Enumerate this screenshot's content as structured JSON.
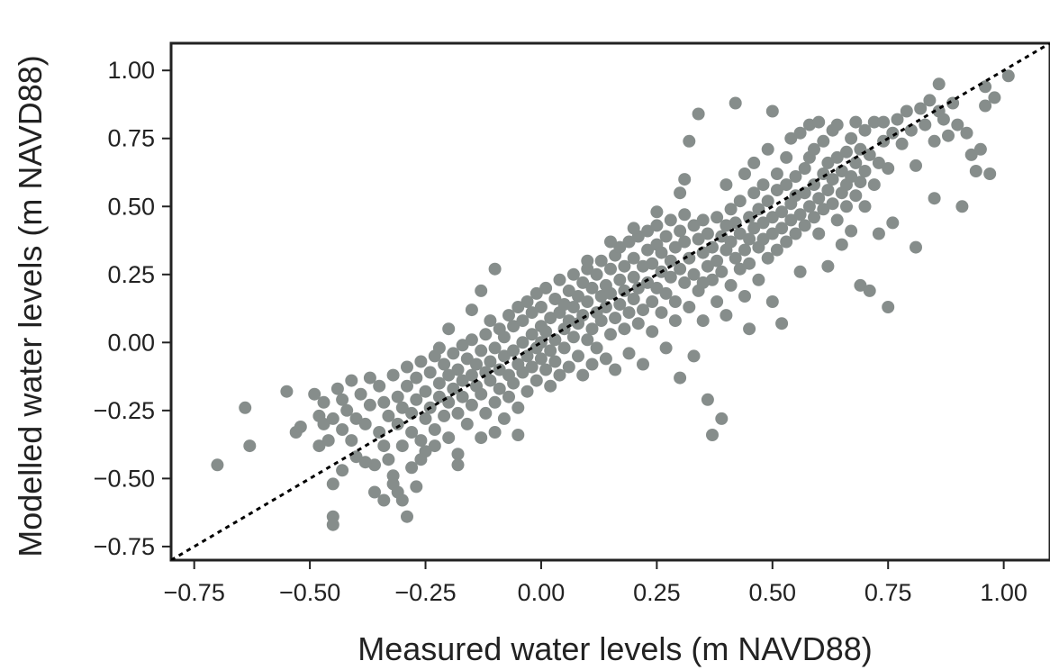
{
  "chart_data": {
    "type": "scatter",
    "title": "",
    "xlabel": "Measured water levels (m NAVD88)",
    "ylabel": "Modelled water levels (m NAVD88)",
    "xlim": [
      -0.8,
      1.1
    ],
    "ylim": [
      -0.8,
      1.1
    ],
    "x_ticks": [
      -0.75,
      -0.5,
      -0.25,
      0.0,
      0.25,
      0.5,
      0.75,
      1.0
    ],
    "x_tick_labels": [
      "−0.75",
      "−0.50",
      "−0.25",
      "0.00",
      "0.25",
      "0.50",
      "0.75",
      "1.00"
    ],
    "y_ticks": [
      -0.75,
      -0.5,
      -0.25,
      0.0,
      0.25,
      0.5,
      0.75,
      1.0
    ],
    "y_tick_labels": [
      "−0.75",
      "−0.50",
      "−0.25",
      "0.00",
      "0.25",
      "0.50",
      "0.75",
      "1.00"
    ],
    "grid": false,
    "marker_color": "#868d8b",
    "reference_line": {
      "style": "dotted",
      "color": "#000000",
      "from": [
        -0.8,
        -0.8
      ],
      "to": [
        1.1,
        1.1
      ]
    },
    "points": [
      [
        -0.7,
        -0.45
      ],
      [
        -0.64,
        -0.24
      ],
      [
        -0.63,
        -0.38
      ],
      [
        -0.55,
        -0.18
      ],
      [
        -0.53,
        -0.33
      ],
      [
        -0.52,
        -0.31
      ],
      [
        -0.49,
        -0.19
      ],
      [
        -0.48,
        -0.27
      ],
      [
        -0.48,
        -0.38
      ],
      [
        -0.47,
        -0.3
      ],
      [
        -0.47,
        -0.22
      ],
      [
        -0.46,
        -0.36
      ],
      [
        -0.45,
        -0.28
      ],
      [
        -0.45,
        -0.52
      ],
      [
        -0.45,
        -0.64
      ],
      [
        -0.45,
        -0.67
      ],
      [
        -0.44,
        -0.17
      ],
      [
        -0.43,
        -0.32
      ],
      [
        -0.43,
        -0.21
      ],
      [
        -0.42,
        -0.25
      ],
      [
        -0.41,
        -0.14
      ],
      [
        -0.41,
        -0.36
      ],
      [
        -0.4,
        -0.28
      ],
      [
        -0.4,
        -0.42
      ],
      [
        -0.39,
        -0.19
      ],
      [
        -0.38,
        -0.3
      ],
      [
        -0.37,
        -0.13
      ],
      [
        -0.37,
        -0.23
      ],
      [
        -0.36,
        -0.45
      ],
      [
        -0.36,
        -0.55
      ],
      [
        -0.35,
        -0.33
      ],
      [
        -0.35,
        -0.16
      ],
      [
        -0.34,
        -0.38
      ],
      [
        -0.34,
        -0.22
      ],
      [
        -0.33,
        -0.27
      ],
      [
        -0.33,
        -0.43
      ],
      [
        -0.32,
        -0.52
      ],
      [
        -0.32,
        -0.12
      ],
      [
        -0.31,
        -0.2
      ],
      [
        -0.31,
        -0.3
      ],
      [
        -0.31,
        -0.55
      ],
      [
        -0.3,
        -0.24
      ],
      [
        -0.3,
        -0.38
      ],
      [
        -0.3,
        -0.58
      ],
      [
        -0.29,
        -0.64
      ],
      [
        -0.29,
        -0.09
      ],
      [
        -0.29,
        -0.16
      ],
      [
        -0.28,
        -0.33
      ],
      [
        -0.28,
        -0.46
      ],
      [
        -0.28,
        -0.26
      ],
      [
        -0.27,
        -0.53
      ],
      [
        -0.27,
        -0.13
      ],
      [
        -0.27,
        -0.21
      ],
      [
        -0.26,
        -0.36
      ],
      [
        -0.26,
        -0.07
      ],
      [
        -0.25,
        -0.28
      ],
      [
        -0.25,
        -0.4
      ],
      [
        -0.25,
        -0.18
      ],
      [
        -0.24,
        -0.11
      ],
      [
        -0.24,
        -0.24
      ],
      [
        -0.23,
        -0.05
      ],
      [
        -0.23,
        -0.32
      ],
      [
        -0.23,
        -0.38
      ],
      [
        -0.22,
        -0.15
      ],
      [
        -0.22,
        -0.2
      ],
      [
        -0.22,
        -0.02
      ],
      [
        -0.21,
        -0.27
      ],
      [
        -0.21,
        -0.08
      ],
      [
        -0.2,
        -0.12
      ],
      [
        -0.2,
        -0.35
      ],
      [
        -0.2,
        -0.22
      ],
      [
        -0.19,
        -0.04
      ],
      [
        -0.19,
        -0.17
      ],
      [
        -0.18,
        -0.1
      ],
      [
        -0.18,
        -0.26
      ],
      [
        -0.18,
        -0.41
      ],
      [
        -0.17,
        -0.01
      ],
      [
        -0.17,
        -0.14
      ],
      [
        -0.17,
        -0.2
      ],
      [
        -0.16,
        -0.06
      ],
      [
        -0.16,
        -0.3
      ],
      [
        -0.15,
        -0.12
      ],
      [
        -0.15,
        0.01
      ],
      [
        -0.15,
        -0.23
      ],
      [
        -0.14,
        -0.08
      ],
      [
        -0.14,
        -0.16
      ],
      [
        -0.13,
        -0.35
      ],
      [
        -0.13,
        -0.03
      ],
      [
        -0.13,
        -0.19
      ],
      [
        -0.12,
        -0.11
      ],
      [
        -0.12,
        0.03
      ],
      [
        -0.12,
        -0.26
      ],
      [
        -0.11,
        -0.07
      ],
      [
        -0.11,
        -0.14
      ],
      [
        -0.11,
        0.08
      ],
      [
        -0.1,
        -0.02
      ],
      [
        -0.1,
        -0.22
      ],
      [
        -0.1,
        -0.33
      ],
      [
        -0.09,
        -0.1
      ],
      [
        -0.09,
        0.05
      ],
      [
        -0.09,
        -0.17
      ],
      [
        -0.08,
        -0.05
      ],
      [
        -0.08,
        0.02
      ],
      [
        -0.08,
        -0.28
      ],
      [
        -0.07,
        -0.12
      ],
      [
        -0.07,
        0.1
      ],
      [
        -0.07,
        -0.2
      ],
      [
        -0.06,
        -0.03
      ],
      [
        -0.06,
        0.06
      ],
      [
        -0.06,
        -0.15
      ],
      [
        -0.05,
        -0.08
      ],
      [
        -0.05,
        0.13
      ],
      [
        -0.05,
        -0.24
      ],
      [
        -0.05,
        -0.34
      ],
      [
        -0.04,
        0.0
      ],
      [
        -0.04,
        -0.11
      ],
      [
        -0.04,
        0.08
      ],
      [
        -0.03,
        -0.05
      ],
      [
        -0.03,
        0.15
      ],
      [
        -0.03,
        -0.18
      ],
      [
        -0.02,
        0.03
      ],
      [
        -0.02,
        -0.09
      ],
      [
        -0.02,
        0.11
      ],
      [
        -0.01,
        -0.02
      ],
      [
        -0.01,
        0.18
      ],
      [
        -0.01,
        -0.14
      ],
      [
        0.0,
        0.06
      ],
      [
        0.0,
        -0.06
      ],
      [
        0.0,
        0.0
      ],
      [
        0.0,
        0.13
      ],
      [
        0.01,
        -0.1
      ],
      [
        0.01,
        0.2
      ],
      [
        0.01,
        0.04
      ],
      [
        0.02,
        -0.03
      ],
      [
        0.02,
        0.09
      ],
      [
        0.02,
        -0.16
      ],
      [
        0.03,
        0.16
      ],
      [
        0.03,
        0.01
      ],
      [
        0.03,
        -0.07
      ],
      [
        0.04,
        0.11
      ],
      [
        0.04,
        0.23
      ],
      [
        0.04,
        -0.12
      ],
      [
        0.05,
        0.05
      ],
      [
        0.05,
        0.14
      ],
      [
        0.05,
        -0.02
      ],
      [
        0.06,
        0.19
      ],
      [
        0.06,
        0.08
      ],
      [
        0.06,
        -0.09
      ],
      [
        0.07,
        0.02
      ],
      [
        0.07,
        0.25
      ],
      [
        0.07,
        0.13
      ],
      [
        0.08,
        -0.05
      ],
      [
        0.08,
        0.17
      ],
      [
        0.08,
        0.07
      ],
      [
        0.09,
        0.22
      ],
      [
        0.09,
        -0.12
      ],
      [
        0.09,
        0.1
      ],
      [
        0.1,
        0.01
      ],
      [
        0.1,
        0.27
      ],
      [
        0.1,
        0.15
      ],
      [
        0.11,
        -0.08
      ],
      [
        0.11,
        0.2
      ],
      [
        0.11,
        0.05
      ],
      [
        0.12,
        0.11
      ],
      [
        0.12,
        0.25
      ],
      [
        0.12,
        -0.02
      ],
      [
        0.13,
        0.17
      ],
      [
        0.13,
        0.3
      ],
      [
        0.13,
        0.08
      ],
      [
        0.14,
        0.21
      ],
      [
        0.14,
        -0.06
      ],
      [
        0.14,
        0.13
      ],
      [
        0.15,
        0.27
      ],
      [
        0.15,
        0.03
      ],
      [
        0.15,
        0.18
      ],
      [
        0.16,
        0.32
      ],
      [
        0.16,
        0.09
      ],
      [
        0.16,
        -0.1
      ],
      [
        0.17,
        0.23
      ],
      [
        0.17,
        0.14
      ],
      [
        0.17,
        0.35
      ],
      [
        0.18,
        0.05
      ],
      [
        0.18,
        0.28
      ],
      [
        0.18,
        0.19
      ],
      [
        0.19,
        0.11
      ],
      [
        0.19,
        0.37
      ],
      [
        0.19,
        -0.04
      ],
      [
        0.2,
        0.24
      ],
      [
        0.2,
        0.16
      ],
      [
        0.2,
        0.31
      ],
      [
        0.21,
        0.07
      ],
      [
        0.21,
        0.39
      ],
      [
        0.21,
        0.2
      ],
      [
        0.22,
        0.28
      ],
      [
        0.22,
        0.12
      ],
      [
        0.22,
        -0.08
      ],
      [
        0.23,
        0.34
      ],
      [
        0.23,
        0.22
      ],
      [
        0.23,
        0.41
      ],
      [
        0.24,
        0.15
      ],
      [
        0.24,
        0.29
      ],
      [
        0.24,
        0.04
      ],
      [
        0.25,
        0.36
      ],
      [
        0.25,
        0.2
      ],
      [
        0.25,
        0.43
      ],
      [
        0.26,
        0.26
      ],
      [
        0.26,
        0.11
      ],
      [
        0.26,
        0.33
      ],
      [
        0.27,
        0.39
      ],
      [
        0.27,
        0.18
      ],
      [
        0.27,
        -0.02
      ],
      [
        0.28,
        0.3
      ],
      [
        0.28,
        0.24
      ],
      [
        0.28,
        0.45
      ],
      [
        0.29,
        0.35
      ],
      [
        0.29,
        0.08
      ],
      [
        0.29,
        0.15
      ],
      [
        0.3,
        0.41
      ],
      [
        0.3,
        0.27
      ],
      [
        0.3,
        -0.13
      ],
      [
        0.31,
        0.22
      ],
      [
        0.31,
        0.37
      ],
      [
        0.31,
        0.47
      ],
      [
        0.32,
        0.31
      ],
      [
        0.32,
        0.13
      ],
      [
        0.32,
        0.74
      ],
      [
        0.33,
        0.43
      ],
      [
        0.33,
        0.25
      ],
      [
        0.33,
        -0.05
      ],
      [
        0.34,
        0.38
      ],
      [
        0.34,
        0.19
      ],
      [
        0.34,
        0.84
      ],
      [
        0.35,
        0.33
      ],
      [
        0.35,
        0.45
      ],
      [
        0.35,
        0.08
      ],
      [
        0.36,
        0.28
      ],
      [
        0.36,
        0.4
      ],
      [
        0.36,
        -0.21
      ],
      [
        0.37,
        0.23
      ],
      [
        0.37,
        0.35
      ],
      [
        0.37,
        -0.34
      ],
      [
        0.38,
        0.46
      ],
      [
        0.38,
        0.3
      ],
      [
        0.38,
        0.15
      ],
      [
        0.39,
        0.39
      ],
      [
        0.39,
        0.26
      ],
      [
        0.39,
        -0.28
      ],
      [
        0.4,
        0.43
      ],
      [
        0.4,
        0.34
      ],
      [
        0.4,
        0.58
      ],
      [
        0.41,
        0.21
      ],
      [
        0.41,
        0.37
      ],
      [
        0.41,
        0.49
      ],
      [
        0.42,
        0.31
      ],
      [
        0.42,
        0.44
      ],
      [
        0.42,
        0.88
      ],
      [
        0.43,
        0.27
      ],
      [
        0.43,
        0.4
      ],
      [
        0.43,
        0.52
      ],
      [
        0.44,
        0.34
      ],
      [
        0.44,
        0.62
      ],
      [
        0.44,
        0.17
      ],
      [
        0.45,
        0.46
      ],
      [
        0.45,
        0.38
      ],
      [
        0.45,
        0.29
      ],
      [
        0.46,
        0.55
      ],
      [
        0.46,
        0.42
      ],
      [
        0.46,
        0.66
      ],
      [
        0.47,
        0.35
      ],
      [
        0.47,
        0.49
      ],
      [
        0.47,
        0.23
      ],
      [
        0.48,
        0.44
      ],
      [
        0.48,
        0.58
      ],
      [
        0.48,
        0.38
      ],
      [
        0.49,
        0.52
      ],
      [
        0.49,
        0.31
      ],
      [
        0.49,
        0.71
      ],
      [
        0.5,
        0.46
      ],
      [
        0.5,
        0.4
      ],
      [
        0.5,
        0.85
      ],
      [
        0.51,
        0.56
      ],
      [
        0.51,
        0.34
      ],
      [
        0.51,
        0.62
      ],
      [
        0.52,
        0.48
      ],
      [
        0.52,
        0.42
      ],
      [
        0.52,
        0.07
      ],
      [
        0.53,
        0.58
      ],
      [
        0.53,
        0.37
      ],
      [
        0.53,
        0.68
      ],
      [
        0.54,
        0.51
      ],
      [
        0.54,
        0.45
      ],
      [
        0.54,
        0.75
      ],
      [
        0.55,
        0.4
      ],
      [
        0.55,
        0.61
      ],
      [
        0.55,
        0.54
      ],
      [
        0.56,
        0.47
      ],
      [
        0.56,
        0.77
      ],
      [
        0.56,
        0.26
      ],
      [
        0.57,
        0.64
      ],
      [
        0.57,
        0.43
      ],
      [
        0.57,
        0.55
      ],
      [
        0.58,
        0.8
      ],
      [
        0.58,
        0.5
      ],
      [
        0.58,
        0.68
      ],
      [
        0.59,
        0.46
      ],
      [
        0.59,
        0.58
      ],
      [
        0.59,
        0.71
      ],
      [
        0.6,
        0.53
      ],
      [
        0.6,
        0.81
      ],
      [
        0.6,
        0.4
      ],
      [
        0.61,
        0.62
      ],
      [
        0.61,
        0.49
      ],
      [
        0.61,
        0.74
      ],
      [
        0.62,
        0.56
      ],
      [
        0.62,
        0.66
      ],
      [
        0.62,
        0.28
      ],
      [
        0.63,
        0.51
      ],
      [
        0.63,
        0.78
      ],
      [
        0.63,
        0.6
      ],
      [
        0.64,
        0.45
      ],
      [
        0.64,
        0.68
      ],
      [
        0.64,
        0.8
      ],
      [
        0.65,
        0.55
      ],
      [
        0.65,
        0.63
      ],
      [
        0.65,
        0.36
      ],
      [
        0.66,
        0.7
      ],
      [
        0.66,
        0.5
      ],
      [
        0.66,
        0.58
      ],
      [
        0.67,
        0.75
      ],
      [
        0.67,
        0.61
      ],
      [
        0.67,
        0.41
      ],
      [
        0.68,
        0.66
      ],
      [
        0.68,
        0.54
      ],
      [
        0.68,
        0.81
      ],
      [
        0.69,
        0.21
      ],
      [
        0.69,
        0.71
      ],
      [
        0.69,
        0.59
      ],
      [
        0.7,
        0.63
      ],
      [
        0.7,
        0.5
      ],
      [
        0.7,
        0.78
      ],
      [
        0.71,
        0.69
      ],
      [
        0.71,
        0.19
      ],
      [
        0.72,
        0.58
      ],
      [
        0.72,
        0.81
      ],
      [
        0.73,
        0.66
      ],
      [
        0.73,
        0.4
      ],
      [
        0.74,
        0.74
      ],
      [
        0.74,
        0.81
      ],
      [
        0.75,
        0.13
      ],
      [
        0.75,
        0.64
      ],
      [
        0.76,
        0.77
      ],
      [
        0.76,
        0.44
      ],
      [
        0.77,
        0.82
      ],
      [
        0.78,
        0.73
      ],
      [
        0.79,
        0.85
      ],
      [
        0.8,
        0.78
      ],
      [
        0.81,
        0.65
      ],
      [
        0.81,
        0.35
      ],
      [
        0.82,
        0.86
      ],
      [
        0.83,
        0.8
      ],
      [
        0.84,
        0.89
      ],
      [
        0.85,
        0.53
      ],
      [
        0.85,
        0.74
      ],
      [
        0.86,
        0.95
      ],
      [
        0.86,
        0.85
      ],
      [
        0.87,
        0.82
      ],
      [
        0.88,
        0.76
      ],
      [
        0.89,
        0.88
      ],
      [
        0.9,
        0.8
      ],
      [
        0.91,
        0.5
      ],
      [
        0.92,
        0.77
      ],
      [
        0.93,
        0.69
      ],
      [
        0.94,
        0.63
      ],
      [
        0.95,
        0.71
      ],
      [
        0.96,
        0.87
      ],
      [
        0.96,
        0.94
      ],
      [
        0.97,
        0.62
      ],
      [
        0.98,
        0.9
      ],
      [
        1.01,
        0.98
      ],
      [
        0.1,
        0.3
      ],
      [
        0.15,
        0.37
      ],
      [
        0.2,
        0.42
      ],
      [
        0.25,
        0.48
      ],
      [
        0.3,
        0.55
      ],
      [
        0.31,
        0.6
      ],
      [
        0.35,
        0.22
      ],
      [
        0.4,
        0.1
      ],
      [
        0.45,
        0.05
      ],
      [
        0.5,
        0.15
      ],
      [
        -0.2,
        0.05
      ],
      [
        -0.15,
        0.12
      ],
      [
        -0.1,
        0.27
      ],
      [
        -0.13,
        0.19
      ],
      [
        -0.18,
        -0.45
      ],
      [
        -0.26,
        -0.43
      ],
      [
        -0.32,
        -0.49
      ],
      [
        -0.38,
        -0.44
      ],
      [
        -0.43,
        -0.47
      ],
      [
        -0.34,
        -0.58
      ]
    ]
  }
}
